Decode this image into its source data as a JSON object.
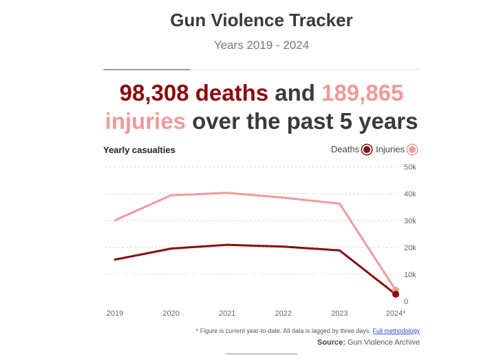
{
  "header": {
    "title": "Gun Violence Tracker",
    "subtitle": "Years 2019 - 2024"
  },
  "headline": {
    "deaths_count": "98,308 deaths",
    "connector": "and",
    "injuries_count": "189,865",
    "injuries_word": "injuries",
    "rest": "over the past 5 years"
  },
  "legend": {
    "deaths": "Deaths",
    "injuries": "Injuries"
  },
  "colors": {
    "deaths": "#8b0a0a",
    "injuries": "#f09a9a",
    "link": "#2a4dd0"
  },
  "footer": {
    "note": "* Figure is current year-to-date. All data is lagged by three days.",
    "link": "Full methodology",
    "source_label": "Source:",
    "source": "Gun Violence Archive"
  },
  "chart_data": {
    "type": "line",
    "title": "Yearly casualties",
    "x": [
      "2019",
      "2020",
      "2021",
      "2022",
      "2023",
      "2024*"
    ],
    "series": [
      {
        "name": "Deaths",
        "values": [
          15500,
          19600,
          21000,
          20300,
          18900,
          2600
        ]
      },
      {
        "name": "Injuries",
        "values": [
          30100,
          39400,
          40300,
          38500,
          36300,
          4100
        ]
      }
    ],
    "y_ticks": [
      "0",
      "10k",
      "20k",
      "30k",
      "40k",
      "50k"
    ],
    "ylim": [
      0,
      50000
    ],
    "grid": true,
    "legend_position": "top-right",
    "endpoint_markers": true
  }
}
